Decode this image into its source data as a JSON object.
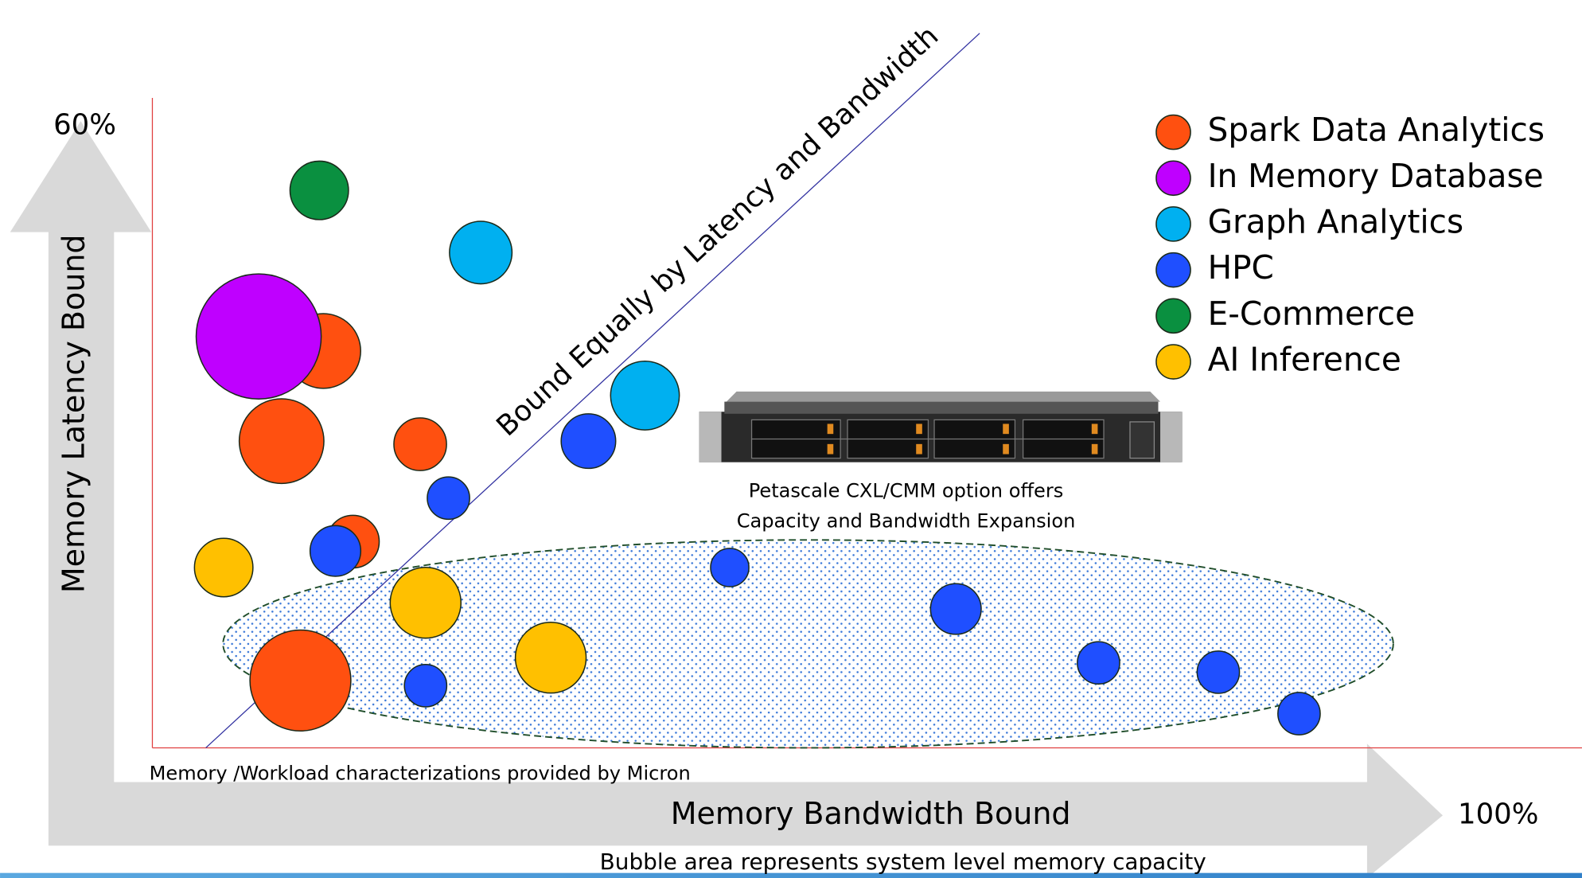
{
  "chart_data": {
    "type": "bubble",
    "xlabel": "Memory Bandwidth Bound",
    "ylabel": "Memory Latency Bound",
    "xlim": [
      0,
      100
    ],
    "ylim": [
      0,
      60
    ],
    "xticks": [
      {
        "value": 100,
        "label": "100%"
      }
    ],
    "yticks": [
      {
        "value": 60,
        "label": "60%"
      }
    ],
    "annotations": [
      "Bound Equally by Latency and Bandwidth",
      "Petascale CXL/CMM option offers",
      "Capacity and Bandwidth Expansion",
      "Memory /Workload characterizations provided by Micron",
      "Bubble area represents system level memory capacity"
    ],
    "series": [
      {
        "name": "Spark Data Analytics",
        "color": "#ff5010",
        "x": [
          12.7,
          9.6,
          19.9,
          14.9,
          11.0
        ],
        "values": [
          38.3,
          29.6,
          29.3,
          19.9,
          6.5
        ],
        "sizes": [
          13.7,
          17.6,
          6.8,
          6.8,
          25
        ]
      },
      {
        "name": "In Memory Database",
        "color": "#bf00ff",
        "x": [
          7.9
        ],
        "values": [
          39.7
        ],
        "sizes": [
          38.4
        ]
      },
      {
        "name": "Graph Analytics",
        "color": "#00b0f0",
        "x": [
          24.4,
          36.6
        ],
        "values": [
          47.8,
          34.0
        ],
        "sizes": [
          9.6,
          11.6
        ]
      },
      {
        "name": "HPC",
        "color": "#1f4fff",
        "x": [
          32.4,
          22.0,
          13.6,
          42.9,
          59.7,
          70.3,
          79.2,
          85.2,
          20.3
        ],
        "values": [
          29.6,
          24.1,
          19.0,
          17.4,
          13.4,
          8.2,
          7.3,
          3.3,
          6.0
        ],
        "sizes": [
          7.3,
          4.4,
          6.3,
          3.6,
          6.3,
          4.4,
          4.4,
          4.4,
          4.4
        ]
      },
      {
        "name": "E-Commerce",
        "color": "#0a9040",
        "x": [
          12.4
        ],
        "values": [
          53.8
        ],
        "sizes": [
          8.4
        ]
      },
      {
        "name": "AI Inference",
        "color": "#ffc000",
        "x": [
          5.3,
          20.3,
          29.6
        ],
        "values": [
          17.4,
          14.0,
          8.7
        ],
        "sizes": [
          8.4,
          12.3,
          12.3
        ]
      }
    ]
  }
}
